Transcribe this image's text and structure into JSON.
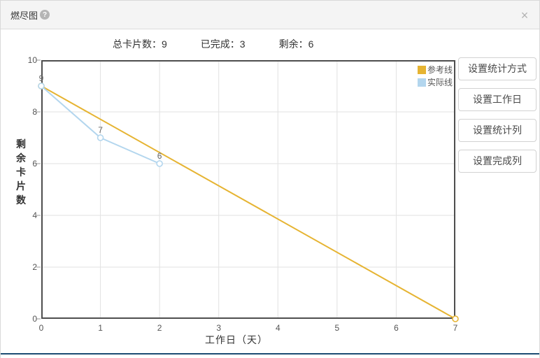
{
  "modal": {
    "title": "燃尽图",
    "help_icon": "?",
    "close_icon": "×"
  },
  "stats": {
    "separator": "：",
    "items": [
      {
        "label": "总卡片数",
        "value": "9"
      },
      {
        "label": "已完成",
        "value": "3"
      },
      {
        "label": "剩余",
        "value": "6"
      }
    ]
  },
  "side_buttons": [
    "设置统计方式",
    "设置工作日",
    "设置统计列",
    "设置完成列"
  ],
  "chart_data": {
    "type": "line",
    "title": "",
    "xlabel": "工作日（天）",
    "ylabel": "剩余卡片数",
    "xlim": [
      0,
      7
    ],
    "ylim": [
      0,
      10
    ],
    "x_ticks": [
      0,
      1,
      2,
      3,
      4,
      5,
      6,
      7
    ],
    "y_ticks": [
      0,
      2,
      4,
      6,
      8,
      10
    ],
    "grid": true,
    "legend_position": "top-right",
    "series": [
      {
        "name": "参考线",
        "color": "#e6b432",
        "x": [
          0,
          7
        ],
        "y": [
          9,
          0
        ],
        "point_labels": []
      },
      {
        "name": "实际线",
        "color": "#b3d6ee",
        "x": [
          0,
          1,
          2
        ],
        "y": [
          9,
          7,
          6
        ],
        "point_labels": [
          "9",
          "7",
          "6"
        ]
      }
    ]
  },
  "colors": {
    "plot_border": "#4e4e4e",
    "grid_line": "#e2e2e2",
    "tick_text": "#555555",
    "point_label": "#666666",
    "bottom_accent": "#1d4d73"
  }
}
